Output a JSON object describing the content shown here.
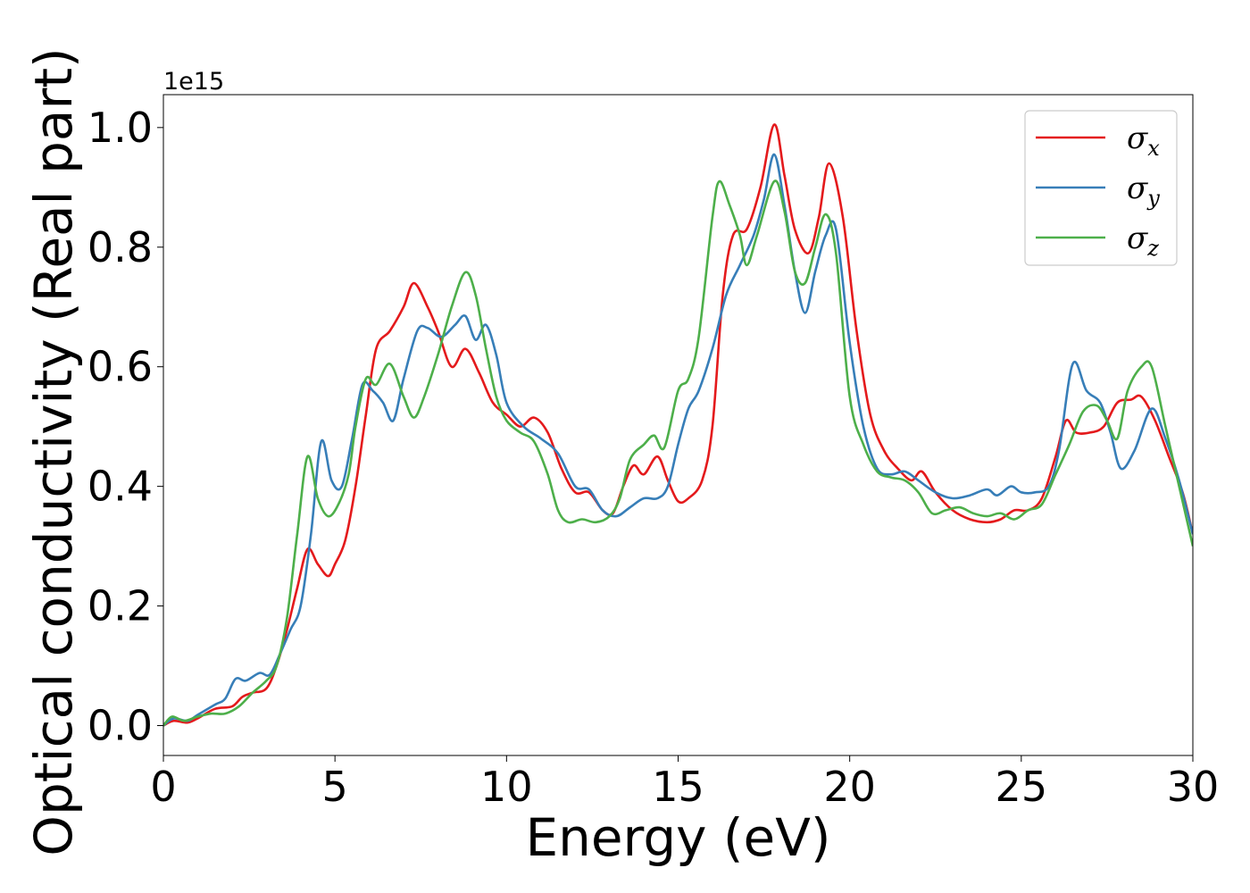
{
  "chart_data": {
    "type": "line",
    "title": "",
    "xlabel": "Energy (eV)",
    "ylabel": "Optical conductivity (Real part)",
    "y_offset_label": "1e15",
    "xlim": [
      0,
      30
    ],
    "ylim": [
      -0.05,
      1.055
    ],
    "x_ticks": [
      0,
      5,
      10,
      15,
      20,
      25,
      30
    ],
    "x_tick_labels": [
      "0",
      "5",
      "10",
      "15",
      "20",
      "25",
      "30"
    ],
    "y_ticks": [
      0.0,
      0.2,
      0.4,
      0.6,
      0.8,
      1.0
    ],
    "y_tick_labels": [
      "0.0",
      "0.2",
      "0.4",
      "0.6",
      "0.8",
      "1.0"
    ],
    "grid": false,
    "legend_position": "top-right",
    "series": [
      {
        "name": "σx",
        "symbol": "σ",
        "subscript": "x",
        "color": "#e41a1c",
        "points": [
          [
            0,
            0
          ],
          [
            0.3,
            0.008
          ],
          [
            0.7,
            0.005
          ],
          [
            1.0,
            0.012
          ],
          [
            1.5,
            0.028
          ],
          [
            2.0,
            0.032
          ],
          [
            2.3,
            0.048
          ],
          [
            2.6,
            0.055
          ],
          [
            3.0,
            0.062
          ],
          [
            3.3,
            0.1
          ],
          [
            3.6,
            0.16
          ],
          [
            3.9,
            0.23
          ],
          [
            4.2,
            0.295
          ],
          [
            4.5,
            0.27
          ],
          [
            4.8,
            0.25
          ],
          [
            5.0,
            0.27
          ],
          [
            5.3,
            0.31
          ],
          [
            5.6,
            0.4
          ],
          [
            5.9,
            0.52
          ],
          [
            6.2,
            0.63
          ],
          [
            6.6,
            0.66
          ],
          [
            7.0,
            0.7
          ],
          [
            7.3,
            0.74
          ],
          [
            7.7,
            0.7
          ],
          [
            8.0,
            0.66
          ],
          [
            8.4,
            0.6
          ],
          [
            8.8,
            0.63
          ],
          [
            9.2,
            0.59
          ],
          [
            9.6,
            0.54
          ],
          [
            10.0,
            0.52
          ],
          [
            10.4,
            0.5
          ],
          [
            10.8,
            0.515
          ],
          [
            11.2,
            0.49
          ],
          [
            11.6,
            0.43
          ],
          [
            12.0,
            0.39
          ],
          [
            12.4,
            0.39
          ],
          [
            12.8,
            0.36
          ],
          [
            13.1,
            0.355
          ],
          [
            13.4,
            0.4
          ],
          [
            13.7,
            0.435
          ],
          [
            14.0,
            0.42
          ],
          [
            14.4,
            0.45
          ],
          [
            14.7,
            0.41
          ],
          [
            15.0,
            0.375
          ],
          [
            15.3,
            0.38
          ],
          [
            15.7,
            0.41
          ],
          [
            16.0,
            0.5
          ],
          [
            16.3,
            0.72
          ],
          [
            16.6,
            0.82
          ],
          [
            17.0,
            0.83
          ],
          [
            17.4,
            0.9
          ],
          [
            17.8,
            1.005
          ],
          [
            18.1,
            0.92
          ],
          [
            18.4,
            0.83
          ],
          [
            18.8,
            0.79
          ],
          [
            19.1,
            0.85
          ],
          [
            19.4,
            0.94
          ],
          [
            19.8,
            0.85
          ],
          [
            20.2,
            0.66
          ],
          [
            20.6,
            0.52
          ],
          [
            21.0,
            0.46
          ],
          [
            21.4,
            0.43
          ],
          [
            21.8,
            0.41
          ],
          [
            22.1,
            0.425
          ],
          [
            22.5,
            0.39
          ],
          [
            23.0,
            0.36
          ],
          [
            23.5,
            0.345
          ],
          [
            24.0,
            0.34
          ],
          [
            24.4,
            0.345
          ],
          [
            24.8,
            0.36
          ],
          [
            25.2,
            0.36
          ],
          [
            25.6,
            0.38
          ],
          [
            26.0,
            0.45
          ],
          [
            26.3,
            0.51
          ],
          [
            26.6,
            0.49
          ],
          [
            27.0,
            0.49
          ],
          [
            27.4,
            0.5
          ],
          [
            27.8,
            0.54
          ],
          [
            28.2,
            0.545
          ],
          [
            28.5,
            0.55
          ],
          [
            28.9,
            0.51
          ],
          [
            29.3,
            0.45
          ],
          [
            29.7,
            0.39
          ],
          [
            30.0,
            0.32
          ]
        ]
      },
      {
        "name": "σy",
        "symbol": "σ",
        "subscript": "y",
        "color": "#377eb8",
        "points": [
          [
            0,
            0
          ],
          [
            0.3,
            0.012
          ],
          [
            0.7,
            0.008
          ],
          [
            1.0,
            0.018
          ],
          [
            1.5,
            0.035
          ],
          [
            1.8,
            0.045
          ],
          [
            2.1,
            0.078
          ],
          [
            2.4,
            0.075
          ],
          [
            2.8,
            0.088
          ],
          [
            3.1,
            0.085
          ],
          [
            3.4,
            0.12
          ],
          [
            3.7,
            0.16
          ],
          [
            4.0,
            0.2
          ],
          [
            4.3,
            0.32
          ],
          [
            4.6,
            0.475
          ],
          [
            4.9,
            0.41
          ],
          [
            5.2,
            0.4
          ],
          [
            5.5,
            0.48
          ],
          [
            5.8,
            0.57
          ],
          [
            6.1,
            0.56
          ],
          [
            6.4,
            0.54
          ],
          [
            6.7,
            0.51
          ],
          [
            7.0,
            0.58
          ],
          [
            7.4,
            0.66
          ],
          [
            7.7,
            0.665
          ],
          [
            8.1,
            0.65
          ],
          [
            8.5,
            0.67
          ],
          [
            8.8,
            0.685
          ],
          [
            9.1,
            0.645
          ],
          [
            9.4,
            0.67
          ],
          [
            9.7,
            0.62
          ],
          [
            10.0,
            0.54
          ],
          [
            10.5,
            0.5
          ],
          [
            11.0,
            0.48
          ],
          [
            11.5,
            0.455
          ],
          [
            12.0,
            0.4
          ],
          [
            12.4,
            0.395
          ],
          [
            12.8,
            0.36
          ],
          [
            13.2,
            0.35
          ],
          [
            13.6,
            0.365
          ],
          [
            14.0,
            0.38
          ],
          [
            14.4,
            0.38
          ],
          [
            14.7,
            0.4
          ],
          [
            15.0,
            0.47
          ],
          [
            15.3,
            0.53
          ],
          [
            15.6,
            0.56
          ],
          [
            16.0,
            0.63
          ],
          [
            16.4,
            0.72
          ],
          [
            16.8,
            0.77
          ],
          [
            17.2,
            0.82
          ],
          [
            17.5,
            0.88
          ],
          [
            17.8,
            0.955
          ],
          [
            18.1,
            0.87
          ],
          [
            18.4,
            0.76
          ],
          [
            18.7,
            0.69
          ],
          [
            19.0,
            0.76
          ],
          [
            19.3,
            0.82
          ],
          [
            19.6,
            0.83
          ],
          [
            20.0,
            0.64
          ],
          [
            20.4,
            0.5
          ],
          [
            20.8,
            0.43
          ],
          [
            21.2,
            0.42
          ],
          [
            21.6,
            0.425
          ],
          [
            22.0,
            0.41
          ],
          [
            22.5,
            0.39
          ],
          [
            23.0,
            0.38
          ],
          [
            23.5,
            0.385
          ],
          [
            24.0,
            0.395
          ],
          [
            24.3,
            0.385
          ],
          [
            24.7,
            0.4
          ],
          [
            25.0,
            0.39
          ],
          [
            25.4,
            0.39
          ],
          [
            25.8,
            0.4
          ],
          [
            26.1,
            0.46
          ],
          [
            26.5,
            0.605
          ],
          [
            26.9,
            0.56
          ],
          [
            27.3,
            0.54
          ],
          [
            27.6,
            0.49
          ],
          [
            27.9,
            0.43
          ],
          [
            28.3,
            0.46
          ],
          [
            28.8,
            0.53
          ],
          [
            29.2,
            0.48
          ],
          [
            29.6,
            0.41
          ],
          [
            30.0,
            0.32
          ]
        ]
      },
      {
        "name": "σz",
        "symbol": "σ",
        "subscript": "z",
        "color": "#4daf4a",
        "points": [
          [
            0,
            0
          ],
          [
            0.25,
            0.015
          ],
          [
            0.6,
            0.008
          ],
          [
            1.0,
            0.015
          ],
          [
            1.4,
            0.02
          ],
          [
            1.8,
            0.02
          ],
          [
            2.2,
            0.032
          ],
          [
            2.6,
            0.055
          ],
          [
            3.0,
            0.075
          ],
          [
            3.3,
            0.1
          ],
          [
            3.6,
            0.18
          ],
          [
            3.9,
            0.32
          ],
          [
            4.2,
            0.45
          ],
          [
            4.5,
            0.38
          ],
          [
            4.8,
            0.35
          ],
          [
            5.1,
            0.37
          ],
          [
            5.4,
            0.42
          ],
          [
            5.6,
            0.5
          ],
          [
            5.9,
            0.58
          ],
          [
            6.2,
            0.57
          ],
          [
            6.6,
            0.605
          ],
          [
            7.0,
            0.55
          ],
          [
            7.3,
            0.515
          ],
          [
            7.6,
            0.55
          ],
          [
            8.0,
            0.62
          ],
          [
            8.4,
            0.7
          ],
          [
            8.8,
            0.758
          ],
          [
            9.1,
            0.72
          ],
          [
            9.4,
            0.63
          ],
          [
            9.7,
            0.55
          ],
          [
            10.0,
            0.51
          ],
          [
            10.4,
            0.49
          ],
          [
            10.8,
            0.475
          ],
          [
            11.2,
            0.42
          ],
          [
            11.5,
            0.36
          ],
          [
            11.8,
            0.34
          ],
          [
            12.2,
            0.345
          ],
          [
            12.6,
            0.34
          ],
          [
            13.0,
            0.35
          ],
          [
            13.3,
            0.38
          ],
          [
            13.6,
            0.445
          ],
          [
            14.0,
            0.47
          ],
          [
            14.3,
            0.485
          ],
          [
            14.6,
            0.465
          ],
          [
            15.0,
            0.56
          ],
          [
            15.3,
            0.58
          ],
          [
            15.6,
            0.65
          ],
          [
            16.0,
            0.85
          ],
          [
            16.2,
            0.91
          ],
          [
            16.5,
            0.87
          ],
          [
            16.8,
            0.82
          ],
          [
            17.0,
            0.77
          ],
          [
            17.3,
            0.82
          ],
          [
            17.8,
            0.91
          ],
          [
            18.1,
            0.86
          ],
          [
            18.4,
            0.76
          ],
          [
            18.7,
            0.74
          ],
          [
            19.0,
            0.8
          ],
          [
            19.3,
            0.855
          ],
          [
            19.6,
            0.79
          ],
          [
            20.0,
            0.55
          ],
          [
            20.4,
            0.47
          ],
          [
            20.8,
            0.425
          ],
          [
            21.2,
            0.415
          ],
          [
            21.6,
            0.41
          ],
          [
            22.0,
            0.39
          ],
          [
            22.4,
            0.355
          ],
          [
            22.8,
            0.36
          ],
          [
            23.2,
            0.365
          ],
          [
            23.6,
            0.355
          ],
          [
            24.0,
            0.35
          ],
          [
            24.4,
            0.355
          ],
          [
            24.8,
            0.345
          ],
          [
            25.2,
            0.36
          ],
          [
            25.6,
            0.37
          ],
          [
            26.0,
            0.42
          ],
          [
            26.4,
            0.47
          ],
          [
            26.8,
            0.525
          ],
          [
            27.2,
            0.535
          ],
          [
            27.5,
            0.51
          ],
          [
            27.8,
            0.48
          ],
          [
            28.1,
            0.56
          ],
          [
            28.5,
            0.6
          ],
          [
            28.8,
            0.6
          ],
          [
            29.2,
            0.5
          ],
          [
            29.6,
            0.4
          ],
          [
            30.0,
            0.3
          ]
        ]
      }
    ]
  }
}
